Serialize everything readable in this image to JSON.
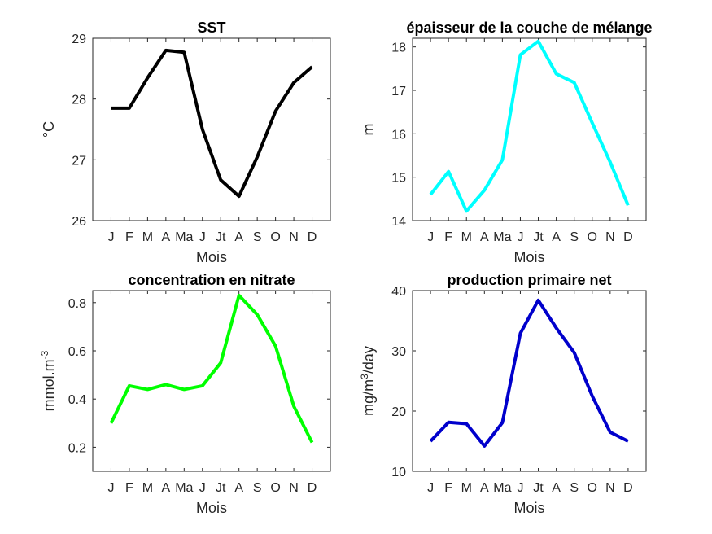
{
  "chart_data": [
    {
      "type": "line",
      "title": "SST",
      "xlabel": "Mois",
      "ylabel": "°C",
      "ylabel_sup": "",
      "ylabel_after": "",
      "categories": [
        "J",
        "F",
        "M",
        "A",
        "Ma",
        "J",
        "Jt",
        "A",
        "S",
        "O",
        "N",
        "D"
      ],
      "ylim": [
        26,
        29
      ],
      "yticks": [
        26,
        27,
        28,
        29
      ],
      "ytick_labels": [
        "26",
        "27",
        "28",
        "29"
      ],
      "color": "#000000",
      "values": [
        27.85,
        27.85,
        28.35,
        28.8,
        28.77,
        27.5,
        26.67,
        26.4,
        27.05,
        27.8,
        28.27,
        28.53
      ]
    },
    {
      "type": "line",
      "title": "épaisseur de la couche de mélange",
      "xlabel": "Mois",
      "ylabel": "m",
      "ylabel_sup": "",
      "ylabel_after": "",
      "categories": [
        "J",
        "F",
        "M",
        "A",
        "Ma",
        "J",
        "Jt",
        "A",
        "S",
        "O",
        "N",
        "D"
      ],
      "ylim": [
        14,
        18.2
      ],
      "yticks": [
        14,
        15,
        16,
        17,
        18
      ],
      "ytick_labels": [
        "14",
        "15",
        "16",
        "17",
        "18"
      ],
      "color": "#00ffff",
      "values": [
        14.6,
        15.13,
        14.22,
        14.7,
        15.4,
        17.82,
        18.13,
        17.38,
        17.18,
        16.25,
        15.35,
        14.35
      ]
    },
    {
      "type": "line",
      "title": "concentration en nitrate",
      "xlabel": "Mois",
      "ylabel": "mmol.m",
      "ylabel_sup": "-3",
      "ylabel_after": "",
      "categories": [
        "J",
        "F",
        "M",
        "A",
        "Ma",
        "J",
        "Jt",
        "A",
        "S",
        "O",
        "N",
        "D"
      ],
      "ylim": [
        0.1,
        0.85
      ],
      "yticks": [
        0.2,
        0.4,
        0.6,
        0.8
      ],
      "ytick_labels": [
        "0.2",
        "0.4",
        "0.6",
        "0.8"
      ],
      "color": "#00ff00",
      "values": [
        0.3,
        0.455,
        0.44,
        0.46,
        0.44,
        0.455,
        0.55,
        0.83,
        0.75,
        0.62,
        0.37,
        0.22
      ]
    },
    {
      "type": "line",
      "title": "production primaire net",
      "xlabel": "Mois",
      "ylabel": "mg/m",
      "ylabel_sup": "3",
      "ylabel_after": "/day",
      "categories": [
        "J",
        "F",
        "M",
        "A",
        "Ma",
        "J",
        "Jt",
        "A",
        "S",
        "O",
        "N",
        "D"
      ],
      "ylim": [
        10,
        40
      ],
      "yticks": [
        10,
        20,
        30,
        40
      ],
      "ytick_labels": [
        "10",
        "20",
        "30",
        "40"
      ],
      "color": "#0000cc",
      "values": [
        15,
        18.15,
        17.9,
        14.2,
        18.1,
        32.9,
        38.4,
        33.8,
        29.7,
        22.5,
        16.5,
        15
      ]
    }
  ]
}
